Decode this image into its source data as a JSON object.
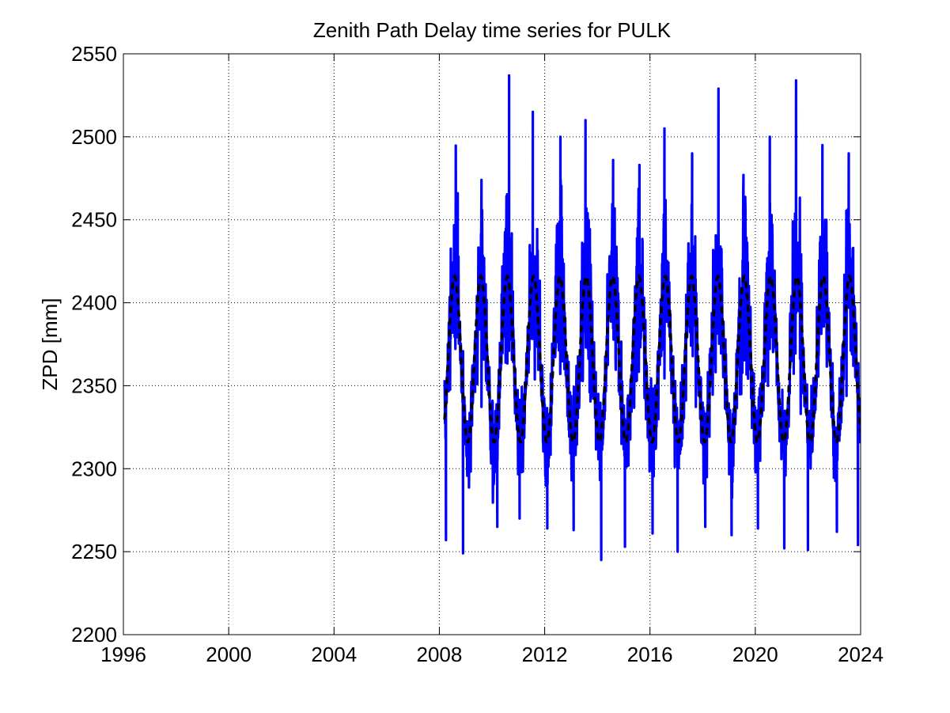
{
  "chart_data": {
    "type": "line",
    "title": "Zenith Path Delay time series for PULK",
    "xlabel": "",
    "ylabel": "ZPD [mm]",
    "xlim": [
      1996,
      2024
    ],
    "ylim": [
      2200,
      2550
    ],
    "xticks": [
      1996,
      2000,
      2004,
      2008,
      2012,
      2016,
      2020,
      2024
    ],
    "yticks": [
      2200,
      2250,
      2300,
      2350,
      2400,
      2450,
      2500,
      2550
    ],
    "grid": true,
    "series": [
      {
        "style": "solid",
        "color": "#0000ff",
        "x_range": [
          2008.2,
          2024.0
        ],
        "mean": 2365,
        "amplitude": 50,
        "period_years": 1,
        "peak_phase_year_fraction": 0.58,
        "sample_extremes": {
          "x": [
            2008.25,
            2008.7,
            2008.9,
            2009.6,
            2010.2,
            2010.65,
            2011.05,
            2011.55,
            2012.1,
            2012.6,
            2013.1,
            2013.55,
            2014.15,
            2014.6,
            2015.05,
            2015.6,
            2016.1,
            2016.55,
            2017.05,
            2017.6,
            2018.1,
            2018.6,
            2019.1,
            2019.55,
            2020.1,
            2020.55,
            2021.1,
            2021.55,
            2022.0,
            2022.55,
            2023.1,
            2023.55,
            2023.9
          ],
          "y": [
            2257,
            2466,
            2249,
            2474,
            2265,
            2537,
            2270,
            2515,
            2264,
            2500,
            2263,
            2510,
            2245,
            2486,
            2253,
            2483,
            2261,
            2505,
            2250,
            2490,
            2265,
            2529,
            2260,
            2477,
            2264,
            2500,
            2252,
            2534,
            2251,
            2495,
            2262,
            2490,
            2254
          ]
        }
      },
      {
        "style": "dashed",
        "color": "#000000",
        "x_range": [
          2008.2,
          2024.0
        ],
        "mean": 2366,
        "amplitude": 50,
        "period_years": 1,
        "peak_phase_year_fraction": 0.58
      }
    ]
  }
}
